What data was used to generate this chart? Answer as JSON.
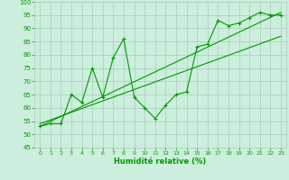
{
  "title": "",
  "xlabel": "Humidité relative (%)",
  "background_color": "#cceedd",
  "grid_color": "#aaccbb",
  "line_color": "#009900",
  "xlim": [
    -0.5,
    23.5
  ],
  "ylim": [
    45,
    100
  ],
  "xticks": [
    0,
    1,
    2,
    3,
    4,
    5,
    6,
    7,
    8,
    9,
    10,
    11,
    12,
    13,
    14,
    15,
    16,
    17,
    18,
    19,
    20,
    21,
    22,
    23
  ],
  "yticks": [
    45,
    50,
    55,
    60,
    65,
    70,
    75,
    80,
    85,
    90,
    95,
    100
  ],
  "line1_x": [
    0,
    1,
    2,
    3,
    4,
    5,
    6,
    7,
    8,
    9,
    10,
    11,
    12,
    13,
    14,
    15,
    16,
    17,
    18,
    19,
    20,
    21,
    22,
    23
  ],
  "line1_y": [
    53,
    54,
    54,
    65,
    62,
    75,
    64,
    79,
    86,
    64,
    60,
    56,
    61,
    65,
    66,
    83,
    84,
    93,
    91,
    92,
    94,
    96,
    95,
    95
  ],
  "trend1_x": [
    0,
    23
  ],
  "trend1_y": [
    53,
    96
  ],
  "trend2_x": [
    0,
    23
  ],
  "trend2_y": [
    54,
    87
  ]
}
